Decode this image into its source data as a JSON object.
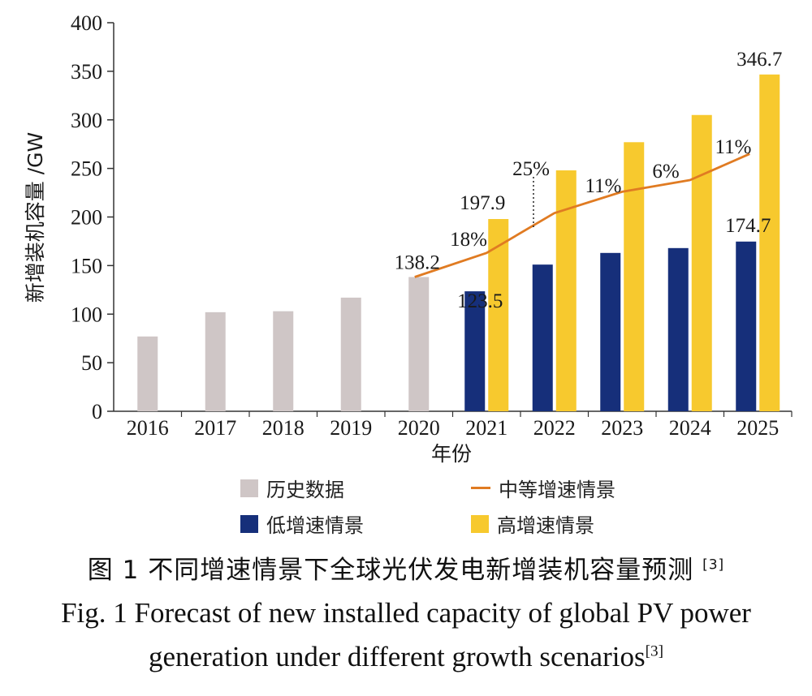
{
  "chart_data": {
    "type": "bar",
    "categories": [
      "2016",
      "2017",
      "2018",
      "2019",
      "2020",
      "2021",
      "2022",
      "2023",
      "2024",
      "2025"
    ],
    "ylabel": "新增装机容量 /GW",
    "xlabel": "年份",
    "ylim": [
      0,
      400
    ],
    "yticks": [
      "0",
      "50",
      "100",
      "150",
      "200",
      "250",
      "300",
      "350",
      "400"
    ],
    "series": [
      {
        "name": "历史数据",
        "type": "bar",
        "color": "#cfc6c6",
        "values": [
          77,
          102,
          103,
          117,
          138.2,
          null,
          null,
          null,
          null,
          null
        ]
      },
      {
        "name": "低增速情景",
        "type": "bar",
        "color": "#162f7a",
        "values": [
          null,
          null,
          null,
          null,
          null,
          123.5,
          151,
          163,
          168,
          174.7
        ]
      },
      {
        "name": "高增速情景",
        "type": "bar",
        "color": "#f7c92e",
        "values": [
          null,
          null,
          null,
          null,
          null,
          197.9,
          248,
          277,
          305,
          346.7
        ]
      },
      {
        "name": "中等增速情景",
        "type": "line",
        "color": "#e07b22",
        "values": [
          null,
          null,
          null,
          null,
          138.2,
          163,
          204,
          226,
          238,
          265
        ]
      }
    ],
    "data_labels": [
      "138.2",
      "123.5",
      "197.9",
      "174.7",
      "346.7"
    ],
    "growth_labels": [
      "18%",
      "25%",
      "11%",
      "6%",
      "11%"
    ],
    "legend": "bottom"
  },
  "caption": {
    "cn": "图 1  不同增速情景下全球光伏发电新增装机容量预测",
    "ref": "[3]",
    "en_line1": "Fig. 1  Forecast of new installed capacity of global PV power",
    "en_line2": "generation under different growth scenarios"
  }
}
